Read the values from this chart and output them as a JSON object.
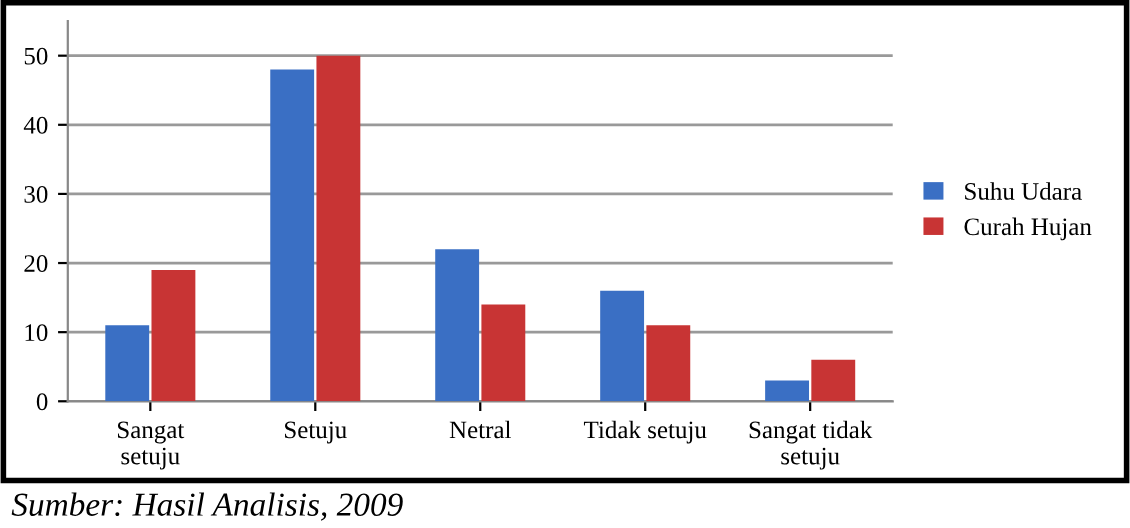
{
  "chart_data": {
    "type": "bar",
    "categories": [
      "Sangat\nsetuju",
      "Setuju",
      "Netral",
      "Tidak setuju",
      "Sangat tidak\nsetuju"
    ],
    "series": [
      {
        "name": "Suhu Udara",
        "color": "#3a6fc4",
        "values": [
          11,
          48,
          22,
          16,
          3
        ]
      },
      {
        "name": "Curah Hujan",
        "color": "#c83434",
        "values": [
          19,
          50,
          14,
          11,
          6
        ]
      }
    ],
    "ylim": [
      0,
      55
    ],
    "yticks": [
      0,
      10,
      20,
      30,
      40,
      50
    ],
    "grid": "y",
    "legend": "right",
    "annotations": [
      "Sumber: Hasil Analisis, 2009"
    ]
  }
}
